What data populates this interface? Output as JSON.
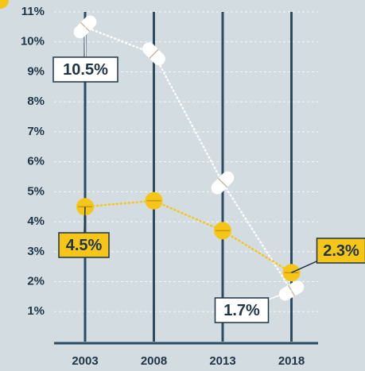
{
  "chart_data": {
    "type": "line",
    "categories": [
      "2003",
      "2008",
      "2013",
      "2018"
    ],
    "series": [
      {
        "name": null,
        "color": "#ffffff",
        "values": [
          10.5,
          9.6,
          5.3,
          1.7
        ],
        "value_labels": [
          "10.5%",
          null,
          null,
          "1.7%"
        ]
      },
      {
        "name": null,
        "color": "#f5c518",
        "values": [
          4.5,
          4.7,
          3.7,
          2.3
        ],
        "value_labels": [
          "4.5%",
          null,
          null,
          "2.3%"
        ]
      }
    ],
    "ylim": [
      0,
      11
    ],
    "yticks": [
      {
        "value": 1,
        "label": "1%"
      },
      {
        "value": 2,
        "label": "2%"
      },
      {
        "value": 3,
        "label": "3%"
      },
      {
        "value": 4,
        "label": "4%"
      },
      {
        "value": 5,
        "label": "5%"
      },
      {
        "value": 6,
        "label": "6%"
      },
      {
        "value": 7,
        "label": "7%"
      },
      {
        "value": 8,
        "label": "8%"
      },
      {
        "value": 9,
        "label": "9%"
      },
      {
        "value": 10,
        "label": "10%"
      },
      {
        "value": 11,
        "label": "11%"
      }
    ],
    "grid": true
  }
}
